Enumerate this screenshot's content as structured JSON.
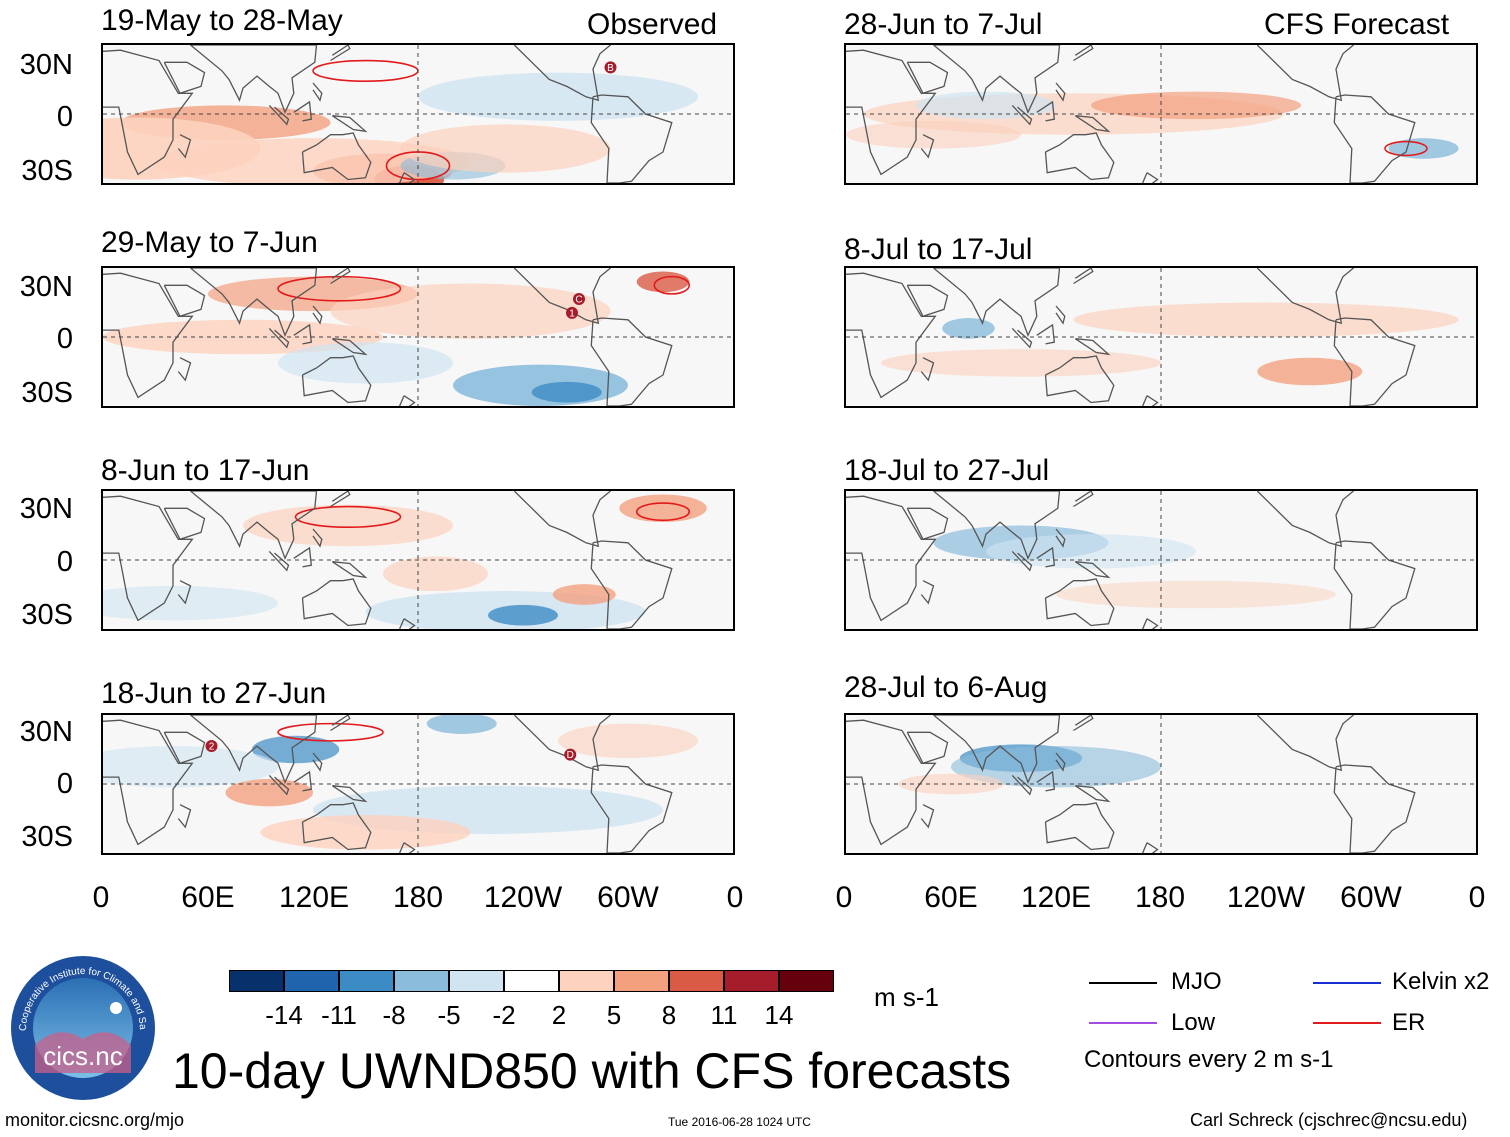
{
  "headers": {
    "left": "Observed",
    "right": "CFS Forecast"
  },
  "panels": [
    {
      "title": "19-May to 28-May",
      "column": "observed",
      "markers": [
        "B"
      ]
    },
    {
      "title": "29-May to 7-Jun",
      "column": "observed",
      "markers": [
        "1",
        "C"
      ]
    },
    {
      "title": "8-Jun to 17-Jun",
      "column": "observed",
      "markers": []
    },
    {
      "title": "18-Jun to 27-Jun",
      "column": "observed",
      "markers": [
        "2",
        "D"
      ]
    },
    {
      "title": "28-Jun to 7-Jul",
      "column": "forecast",
      "markers": []
    },
    {
      "title": "8-Jul to 17-Jul",
      "column": "forecast",
      "markers": []
    },
    {
      "title": "18-Jul to 27-Jul",
      "column": "forecast",
      "markers": []
    },
    {
      "title": "28-Jul to 6-Aug",
      "column": "forecast",
      "markers": []
    }
  ],
  "y_labels": [
    "30N",
    "0",
    "30S"
  ],
  "x_labels": [
    "0",
    "60E",
    "120E",
    "180",
    "120W",
    "60W",
    "0"
  ],
  "colorbar": {
    "labels": [
      "-14",
      "-11",
      "-8",
      "-5",
      "-2",
      "2",
      "5",
      "8",
      "11",
      "14"
    ],
    "colors": [
      "#08306b",
      "#1f64ad",
      "#3d8bc4",
      "#8bbcdb",
      "#d0e4f1",
      "#ffffff",
      "#fcd1bd",
      "#f3a07f",
      "#d95a45",
      "#a51c2a",
      "#67000d"
    ],
    "units": "m s-1"
  },
  "legend": {
    "items": [
      {
        "label": "MJO",
        "color": "#000000"
      },
      {
        "label": "Kelvin x2",
        "color": "#1a2fd1"
      },
      {
        "label": "Low",
        "color": "#a64be0"
      },
      {
        "label": "ER",
        "color": "#e31a1c"
      }
    ],
    "note": "Contours every 2 m s-1"
  },
  "logo": {
    "text": "cics.nc",
    "ring_text": "Cooperative Institute for Climate and Satellites"
  },
  "main_title": "10-day UWND850 with CFS forecasts",
  "footer": {
    "url": "monitor.cicsnc.org/mjo",
    "timestamp": "Tue 2016-06-28 1024 UTC",
    "credit": "Carl Schreck (cjschrec@ncsu.edu)"
  }
}
